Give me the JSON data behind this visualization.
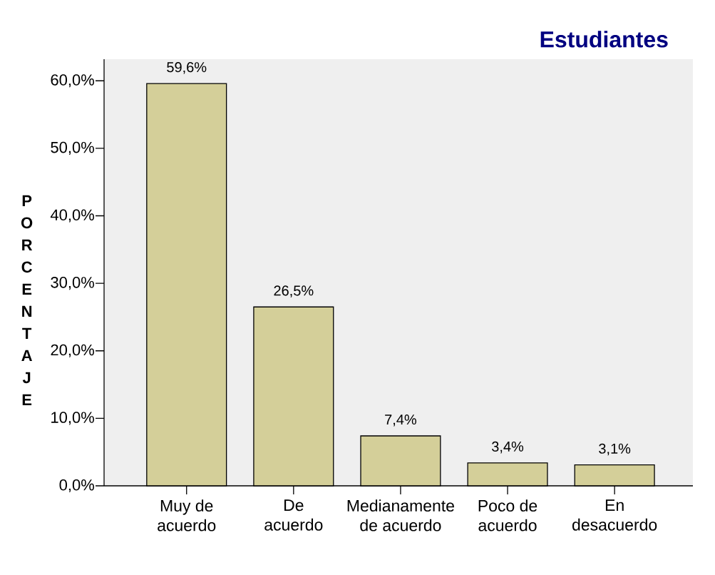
{
  "chart_data": {
    "type": "bar",
    "title": "Estudiantes",
    "ylabel": "PORCENTAJE",
    "categories": [
      "Muy de acuerdo",
      "De acuerdo",
      "Medianamente de acuerdo",
      "Poco de acuerdo",
      "En desacuerdo"
    ],
    "values": [
      59.6,
      26.5,
      7.4,
      3.4,
      3.1
    ],
    "value_labels": [
      "59,6%",
      "26,5%",
      "7,4%",
      "3,4%",
      "3,1%"
    ],
    "color": "#d4cf99",
    "ylim": [
      0,
      63.2
    ],
    "yticks": [
      {
        "value": 0,
        "label": "0,0%"
      },
      {
        "value": 10,
        "label": "10,0%"
      },
      {
        "value": 20,
        "label": "20,0%"
      },
      {
        "value": 30,
        "label": "30,0%"
      },
      {
        "value": 40,
        "label": "40,0%"
      },
      {
        "value": 50,
        "label": "50,0%"
      },
      {
        "value": 60,
        "label": "60,0%"
      }
    ]
  }
}
